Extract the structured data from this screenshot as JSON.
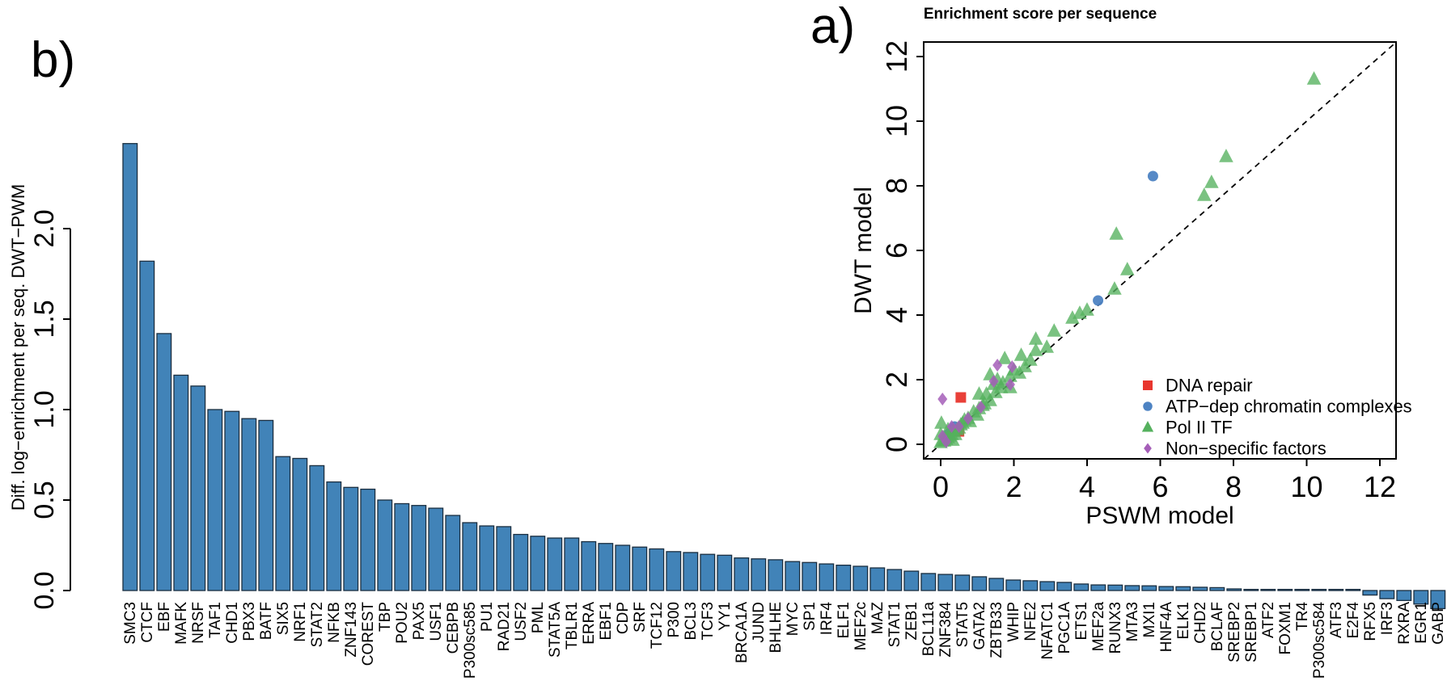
{
  "figure": {
    "panel_a_label": "a)",
    "panel_b_label": "b)"
  },
  "chart_data": [
    {
      "id": "panel-a-scatter",
      "type": "scatter",
      "title": "Enrichment score per sequence",
      "xlabel": "PSWM model",
      "ylabel": "DWT model",
      "xlim": [
        -0.45,
        12.45
      ],
      "ylim": [
        -0.45,
        12.45
      ],
      "xticks": [
        0,
        2,
        4,
        6,
        8,
        10,
        12
      ],
      "yticks": [
        0,
        2,
        4,
        6,
        8,
        10,
        12
      ],
      "grid": false,
      "diagonal_dashed_line": true,
      "legend_position": "bottom-right-inside",
      "legend": [
        {
          "label": "DNA repair",
          "marker": "square",
          "color": "#e8362e"
        },
        {
          "label": "ATP−dep chromatin complexes",
          "marker": "circle",
          "color": "#4d83c3"
        },
        {
          "label": "Pol II TF",
          "marker": "triangle",
          "color": "#55b15e"
        },
        {
          "label": "Non−specific factors",
          "marker": "diamond",
          "color": "#a55eb8"
        }
      ],
      "series": [
        {
          "name": "DNA repair",
          "marker": "square",
          "color": "#e8362e",
          "opacity": 0.95,
          "points": [
            [
              0.55,
              1.45
            ],
            [
              0.5,
              0.4
            ]
          ]
        },
        {
          "name": "ATP−dep chromatin complexes",
          "marker": "circle",
          "color": "#4d83c3",
          "opacity": 0.95,
          "points": [
            [
              5.8,
              8.3
            ],
            [
              4.3,
              4.45
            ],
            [
              0.38,
              0.55
            ],
            [
              0.22,
              0.33
            ]
          ]
        },
        {
          "name": "Pol II TF",
          "marker": "triangle",
          "color": "#55b15e",
          "opacity": 0.78,
          "points": [
            [
              10.2,
              11.3
            ],
            [
              7.8,
              8.9
            ],
            [
              7.4,
              8.1
            ],
            [
              7.2,
              7.7
            ],
            [
              4.8,
              6.5
            ],
            [
              5.1,
              5.4
            ],
            [
              4.75,
              4.8
            ],
            [
              4.0,
              4.15
            ],
            [
              3.8,
              4.05
            ],
            [
              3.6,
              3.9
            ],
            [
              3.1,
              3.5
            ],
            [
              2.6,
              3.25
            ],
            [
              2.9,
              3.0
            ],
            [
              2.6,
              2.9
            ],
            [
              2.2,
              2.75
            ],
            [
              1.75,
              2.65
            ],
            [
              2.45,
              2.6
            ],
            [
              2.3,
              2.4
            ],
            [
              2.0,
              2.3
            ],
            [
              2.15,
              2.2
            ],
            [
              1.35,
              2.15
            ],
            [
              1.9,
              2.1
            ],
            [
              1.55,
              2.0
            ],
            [
              1.7,
              1.9
            ],
            [
              1.45,
              1.85
            ],
            [
              1.65,
              1.75
            ],
            [
              1.9,
              1.75
            ],
            [
              1.5,
              1.6
            ],
            [
              1.25,
              1.55
            ],
            [
              1.05,
              1.55
            ],
            [
              1.35,
              1.35
            ],
            [
              1.2,
              1.25
            ],
            [
              1.15,
              1.2
            ],
            [
              1.05,
              1.1
            ],
            [
              0.9,
              1.0
            ],
            [
              1.0,
              0.9
            ],
            [
              0.75,
              0.8
            ],
            [
              0.65,
              0.75
            ],
            [
              0.8,
              0.7
            ],
            [
              0.6,
              0.65
            ],
            [
              0.02,
              0.65
            ],
            [
              0.55,
              0.6
            ],
            [
              0.5,
              0.5
            ],
            [
              0.45,
              0.45
            ],
            [
              0.2,
              0.45
            ],
            [
              0.35,
              0.4
            ],
            [
              0.3,
              0.3
            ],
            [
              0.4,
              0.3
            ],
            [
              0.0,
              0.3
            ],
            [
              0.25,
              0.25
            ],
            [
              0.2,
              0.2
            ],
            [
              0.15,
              0.15
            ],
            [
              0.33,
              0.12
            ],
            [
              0.1,
              0.1
            ],
            [
              0.05,
              0.1
            ],
            [
              0.0,
              0.05
            ]
          ]
        },
        {
          "name": "Non−specific factors",
          "marker": "diamond",
          "color": "#a55eb8",
          "opacity": 0.85,
          "points": [
            [
              0.05,
              1.4
            ],
            [
              1.55,
              2.45
            ],
            [
              1.95,
              2.4
            ],
            [
              1.45,
              1.95
            ],
            [
              1.9,
              1.85
            ],
            [
              1.1,
              1.15
            ],
            [
              0.75,
              0.8
            ],
            [
              0.5,
              0.55
            ],
            [
              0.3,
              0.55
            ],
            [
              0.05,
              0.25
            ],
            [
              0.15,
              0.08
            ]
          ]
        }
      ]
    },
    {
      "id": "panel-b-barchart",
      "type": "bar",
      "ylabel": "Diff. log−enrichment per seq. DWT−PWM",
      "yticks": [
        0.0,
        0.5,
        1.0,
        1.5,
        2.0
      ],
      "ylim": [
        -0.12,
        2.5
      ],
      "bar_color": "#4183b8",
      "bar_stroke": "#1a2e40",
      "categories": [
        "SMC3",
        "CTCF",
        "EBF",
        "MAFK",
        "NRSF",
        "TAF1",
        "CHD1",
        "PBX3",
        "BATF",
        "SIX5",
        "NRF1",
        "STAT2",
        "NFKB",
        "ZNF143",
        "COREST",
        "TBP",
        "POU2",
        "PAX5",
        "USF1",
        "CEBPB",
        "P300sc585",
        "PU1",
        "RAD21",
        "USF2",
        "PML",
        "STAT5A",
        "TBLR1",
        "ERRA",
        "EBF1",
        "CDP",
        "SRF",
        "TCF12",
        "P300",
        "BCL3",
        "TCF3",
        "YY1",
        "BRCA1A",
        "JUND",
        "BHLHE",
        "MYC",
        "SP1",
        "IRF4",
        "ELF1",
        "MEF2c",
        "MAZ",
        "STAT1",
        "ZEB1",
        "BCL11a",
        "ZNF384",
        "STAT5",
        "GATA2",
        "ZBTB33",
        "WHIP",
        "NFE2",
        "NFATC1",
        "PGC1A",
        "ETS1",
        "MEF2a",
        "RUNX3",
        "MTA3",
        "MXI1",
        "HNF4A",
        "ELK1",
        "CHD2",
        "BCLAF",
        "SREBP2",
        "SREBP1",
        "ATF2",
        "FOXM1",
        "TR4",
        "P300sc584",
        "ATF3",
        "E2F4",
        "RFX5",
        "IRF3",
        "RXRA",
        "EGR1",
        "GABP"
      ],
      "values": [
        2.47,
        1.82,
        1.42,
        1.19,
        1.13,
        1.0,
        0.99,
        0.95,
        0.94,
        0.74,
        0.73,
        0.69,
        0.6,
        0.57,
        0.56,
        0.5,
        0.48,
        0.47,
        0.455,
        0.415,
        0.375,
        0.357,
        0.353,
        0.31,
        0.3,
        0.29,
        0.29,
        0.27,
        0.26,
        0.25,
        0.24,
        0.23,
        0.215,
        0.21,
        0.2,
        0.195,
        0.18,
        0.175,
        0.17,
        0.16,
        0.155,
        0.147,
        0.14,
        0.134,
        0.125,
        0.116,
        0.107,
        0.094,
        0.089,
        0.085,
        0.076,
        0.067,
        0.058,
        0.054,
        0.049,
        0.045,
        0.036,
        0.031,
        0.03,
        0.027,
        0.026,
        0.022,
        0.021,
        0.018,
        0.016,
        0.009,
        0.005,
        0.004,
        0.003,
        0.002,
        0.001,
        0.001,
        0.0,
        -0.025,
        -0.045,
        -0.055,
        -0.075,
        -0.1
      ]
    }
  ]
}
